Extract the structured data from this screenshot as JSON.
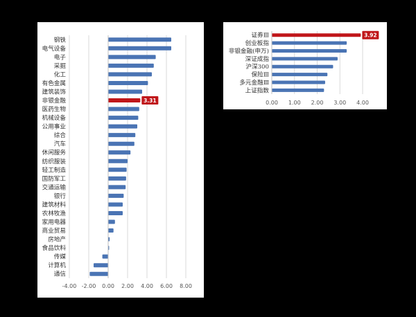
{
  "colors": {
    "bar": "#4a74b4",
    "highlight": "#c0161a",
    "grid": "#d9d9d9",
    "axis": "#bfbfbf"
  },
  "chart_data": [
    {
      "type": "bar",
      "orientation": "horizontal",
      "categories": [
        "钢铁",
        "电气设备",
        "电子",
        "采掘",
        "化工",
        "有色金属",
        "建筑装饰",
        "非银金融",
        "医药生物",
        "机械设备",
        "公用事业",
        "综合",
        "汽车",
        "休闲服务",
        "纺织服装",
        "轻工制造",
        "国防军工",
        "交通运输",
        "银行",
        "建筑材料",
        "农林牧渔",
        "家用电器",
        "商业贸易",
        "房地产",
        "食品饮料",
        "传媒",
        "计算机",
        "通信"
      ],
      "values": [
        6.5,
        6.5,
        4.9,
        4.7,
        4.5,
        4.1,
        3.5,
        3.31,
        3.2,
        3.1,
        3.0,
        2.8,
        2.7,
        2.3,
        2.0,
        1.9,
        1.85,
        1.8,
        1.6,
        1.5,
        1.5,
        0.7,
        0.55,
        0.15,
        0.1,
        -0.6,
        -1.5,
        -1.9
      ],
      "highlight": "非银金融",
      "data_labels": [
        {
          "category": "非银金融",
          "text": "3.31"
        }
      ],
      "xlim": [
        -4,
        8
      ],
      "xticks": [
        "-4.00",
        "-2.00",
        "0.00",
        "2.00",
        "4.00",
        "6.00",
        "8.00"
      ],
      "grid": "vertical"
    },
    {
      "type": "bar",
      "orientation": "horizontal",
      "categories": [
        "证券Ⅲ",
        "创业板指",
        "非银金融(申万)",
        "深证成指",
        "沪深300",
        "保险Ⅲ",
        "多元金融Ⅲ",
        "上证指数"
      ],
      "values": [
        3.92,
        3.3,
        3.3,
        2.9,
        2.7,
        2.45,
        2.35,
        2.3
      ],
      "highlight": "证券Ⅲ",
      "data_labels": [
        {
          "category": "证券Ⅲ",
          "text": "3.92"
        }
      ],
      "xlim": [
        0,
        4
      ],
      "xticks": [
        "0.00",
        "1.00",
        "2.00",
        "3.00",
        "4.00"
      ],
      "grid": "vertical"
    }
  ]
}
